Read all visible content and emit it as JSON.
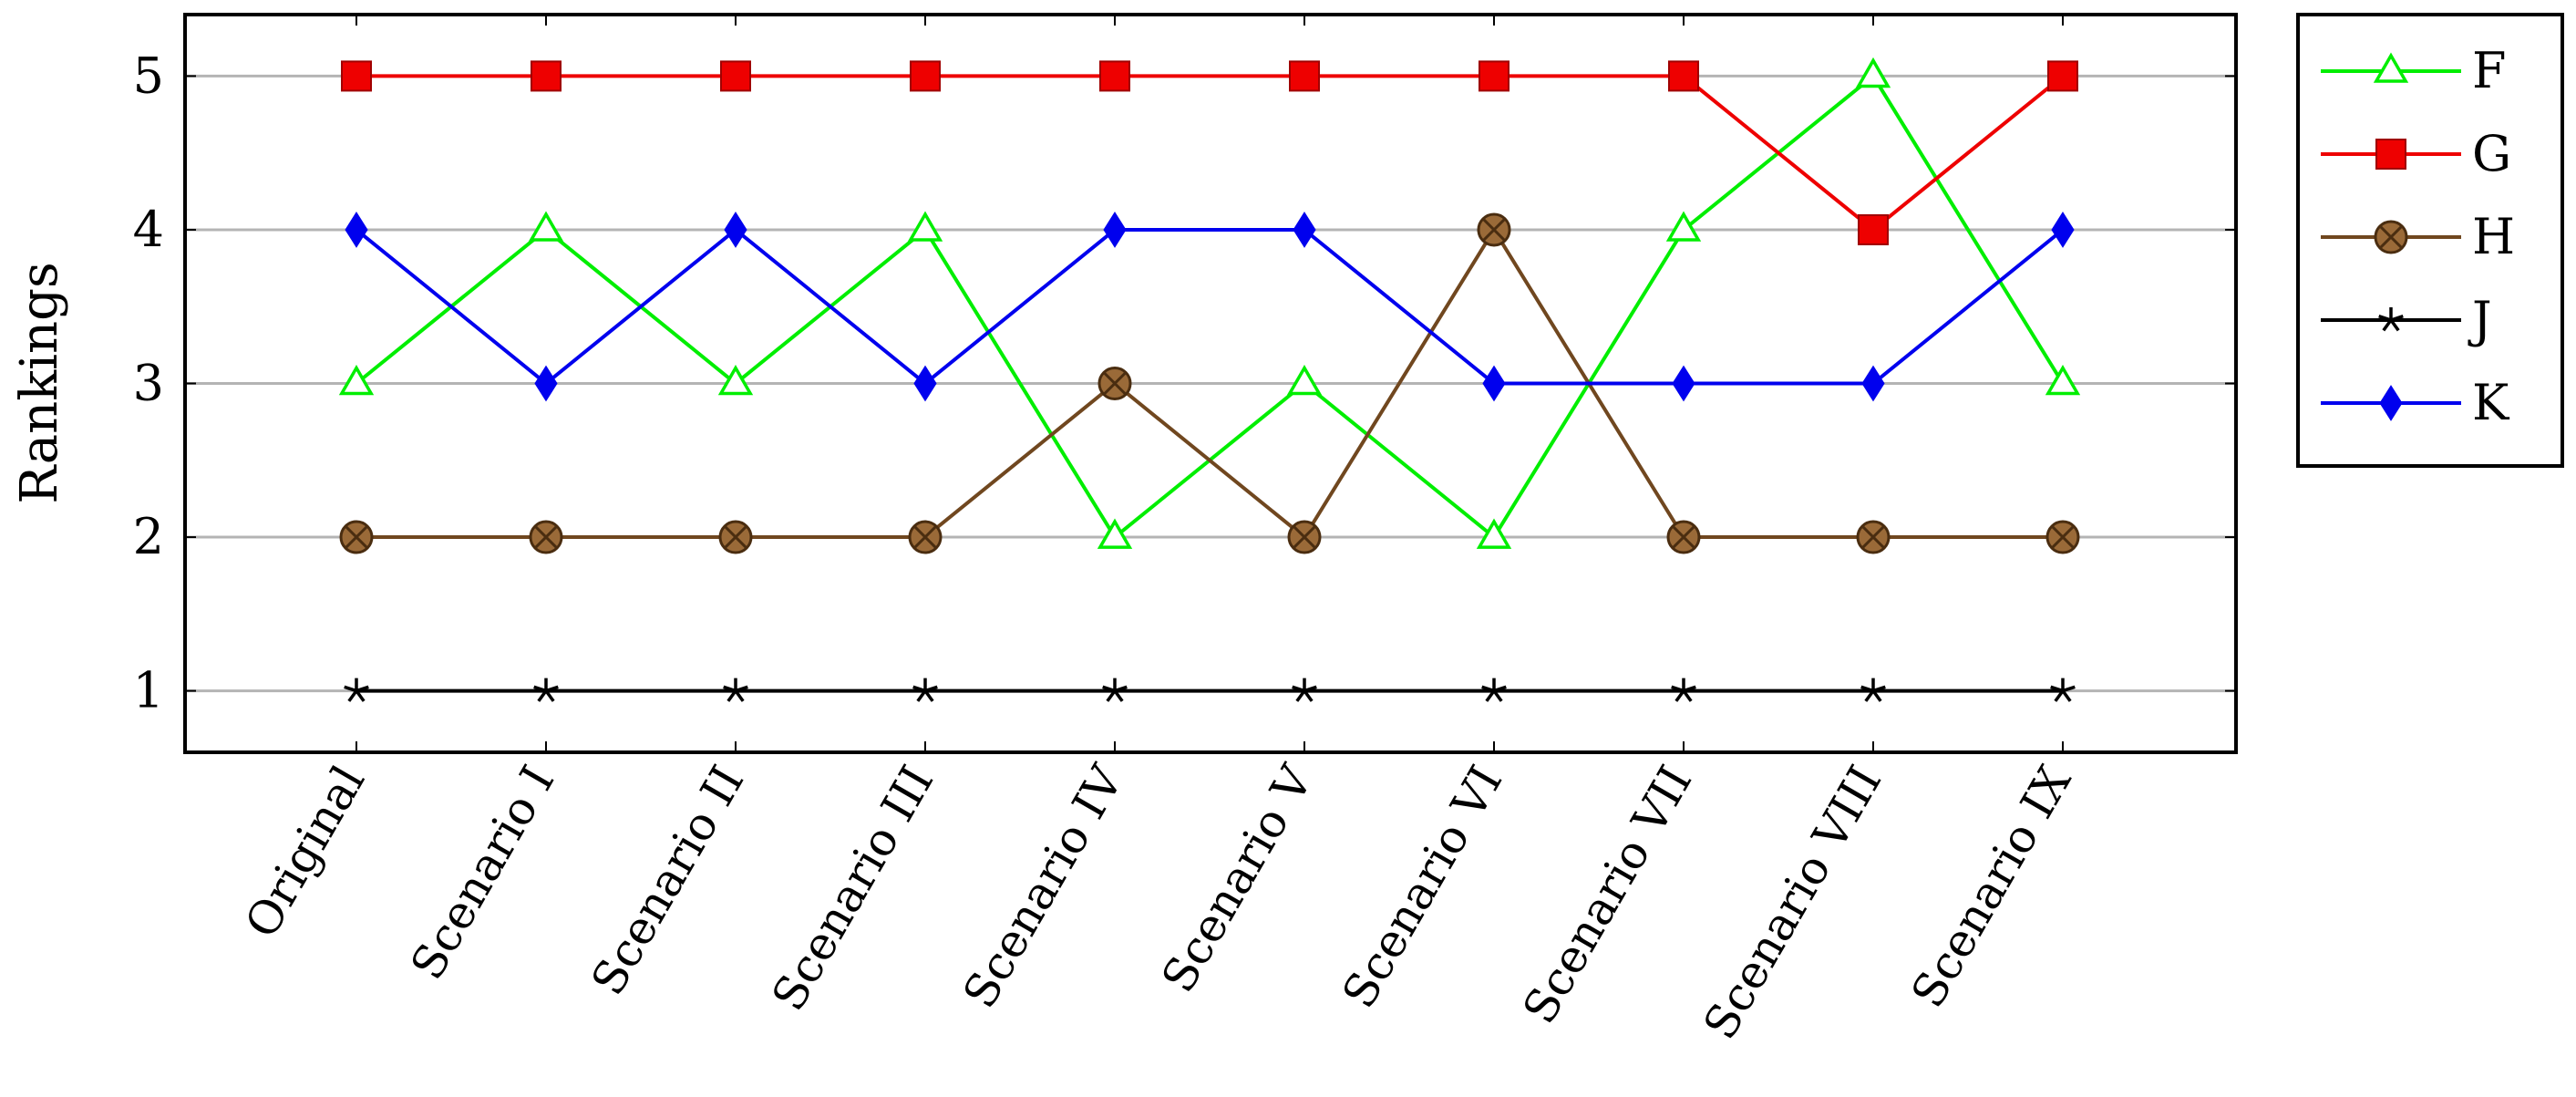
{
  "chart_data": {
    "type": "line",
    "ylabel": "Rankings",
    "xlabel": "",
    "ylim": [
      0.6,
      5.4
    ],
    "yticks": [
      "1",
      "2",
      "3",
      "4",
      "5"
    ],
    "grid": "horizontal",
    "legend_position": "outside-right-top",
    "categories": [
      "Original",
      "Scenario I",
      "Scenario II",
      "Scenario III",
      "Scenario IV",
      "Scenario V",
      "Scenario VI",
      "Scenario VII",
      "Scenario VIII",
      "Scenario IX"
    ],
    "series": [
      {
        "name": "F",
        "color": "#00ee00",
        "marker": "triangle-open",
        "values": [
          3,
          4,
          3,
          4,
          2,
          3,
          2,
          4,
          5,
          3
        ]
      },
      {
        "name": "G",
        "color": "#ee0000",
        "marker": "square",
        "values": [
          5,
          5,
          5,
          5,
          5,
          5,
          5,
          5,
          4,
          5
        ]
      },
      {
        "name": "H",
        "color": "#70471f",
        "marker": "circle-x",
        "values": [
          2,
          2,
          2,
          2,
          3,
          2,
          4,
          2,
          2,
          2
        ]
      },
      {
        "name": "J",
        "color": "#000000",
        "marker": "star",
        "values": [
          1,
          1,
          1,
          1,
          1,
          1,
          1,
          1,
          1,
          1
        ]
      },
      {
        "name": "K",
        "color": "#0000ee",
        "marker": "diamond",
        "values": [
          4,
          3,
          4,
          3,
          4,
          4,
          3,
          3,
          3,
          4
        ]
      }
    ]
  }
}
